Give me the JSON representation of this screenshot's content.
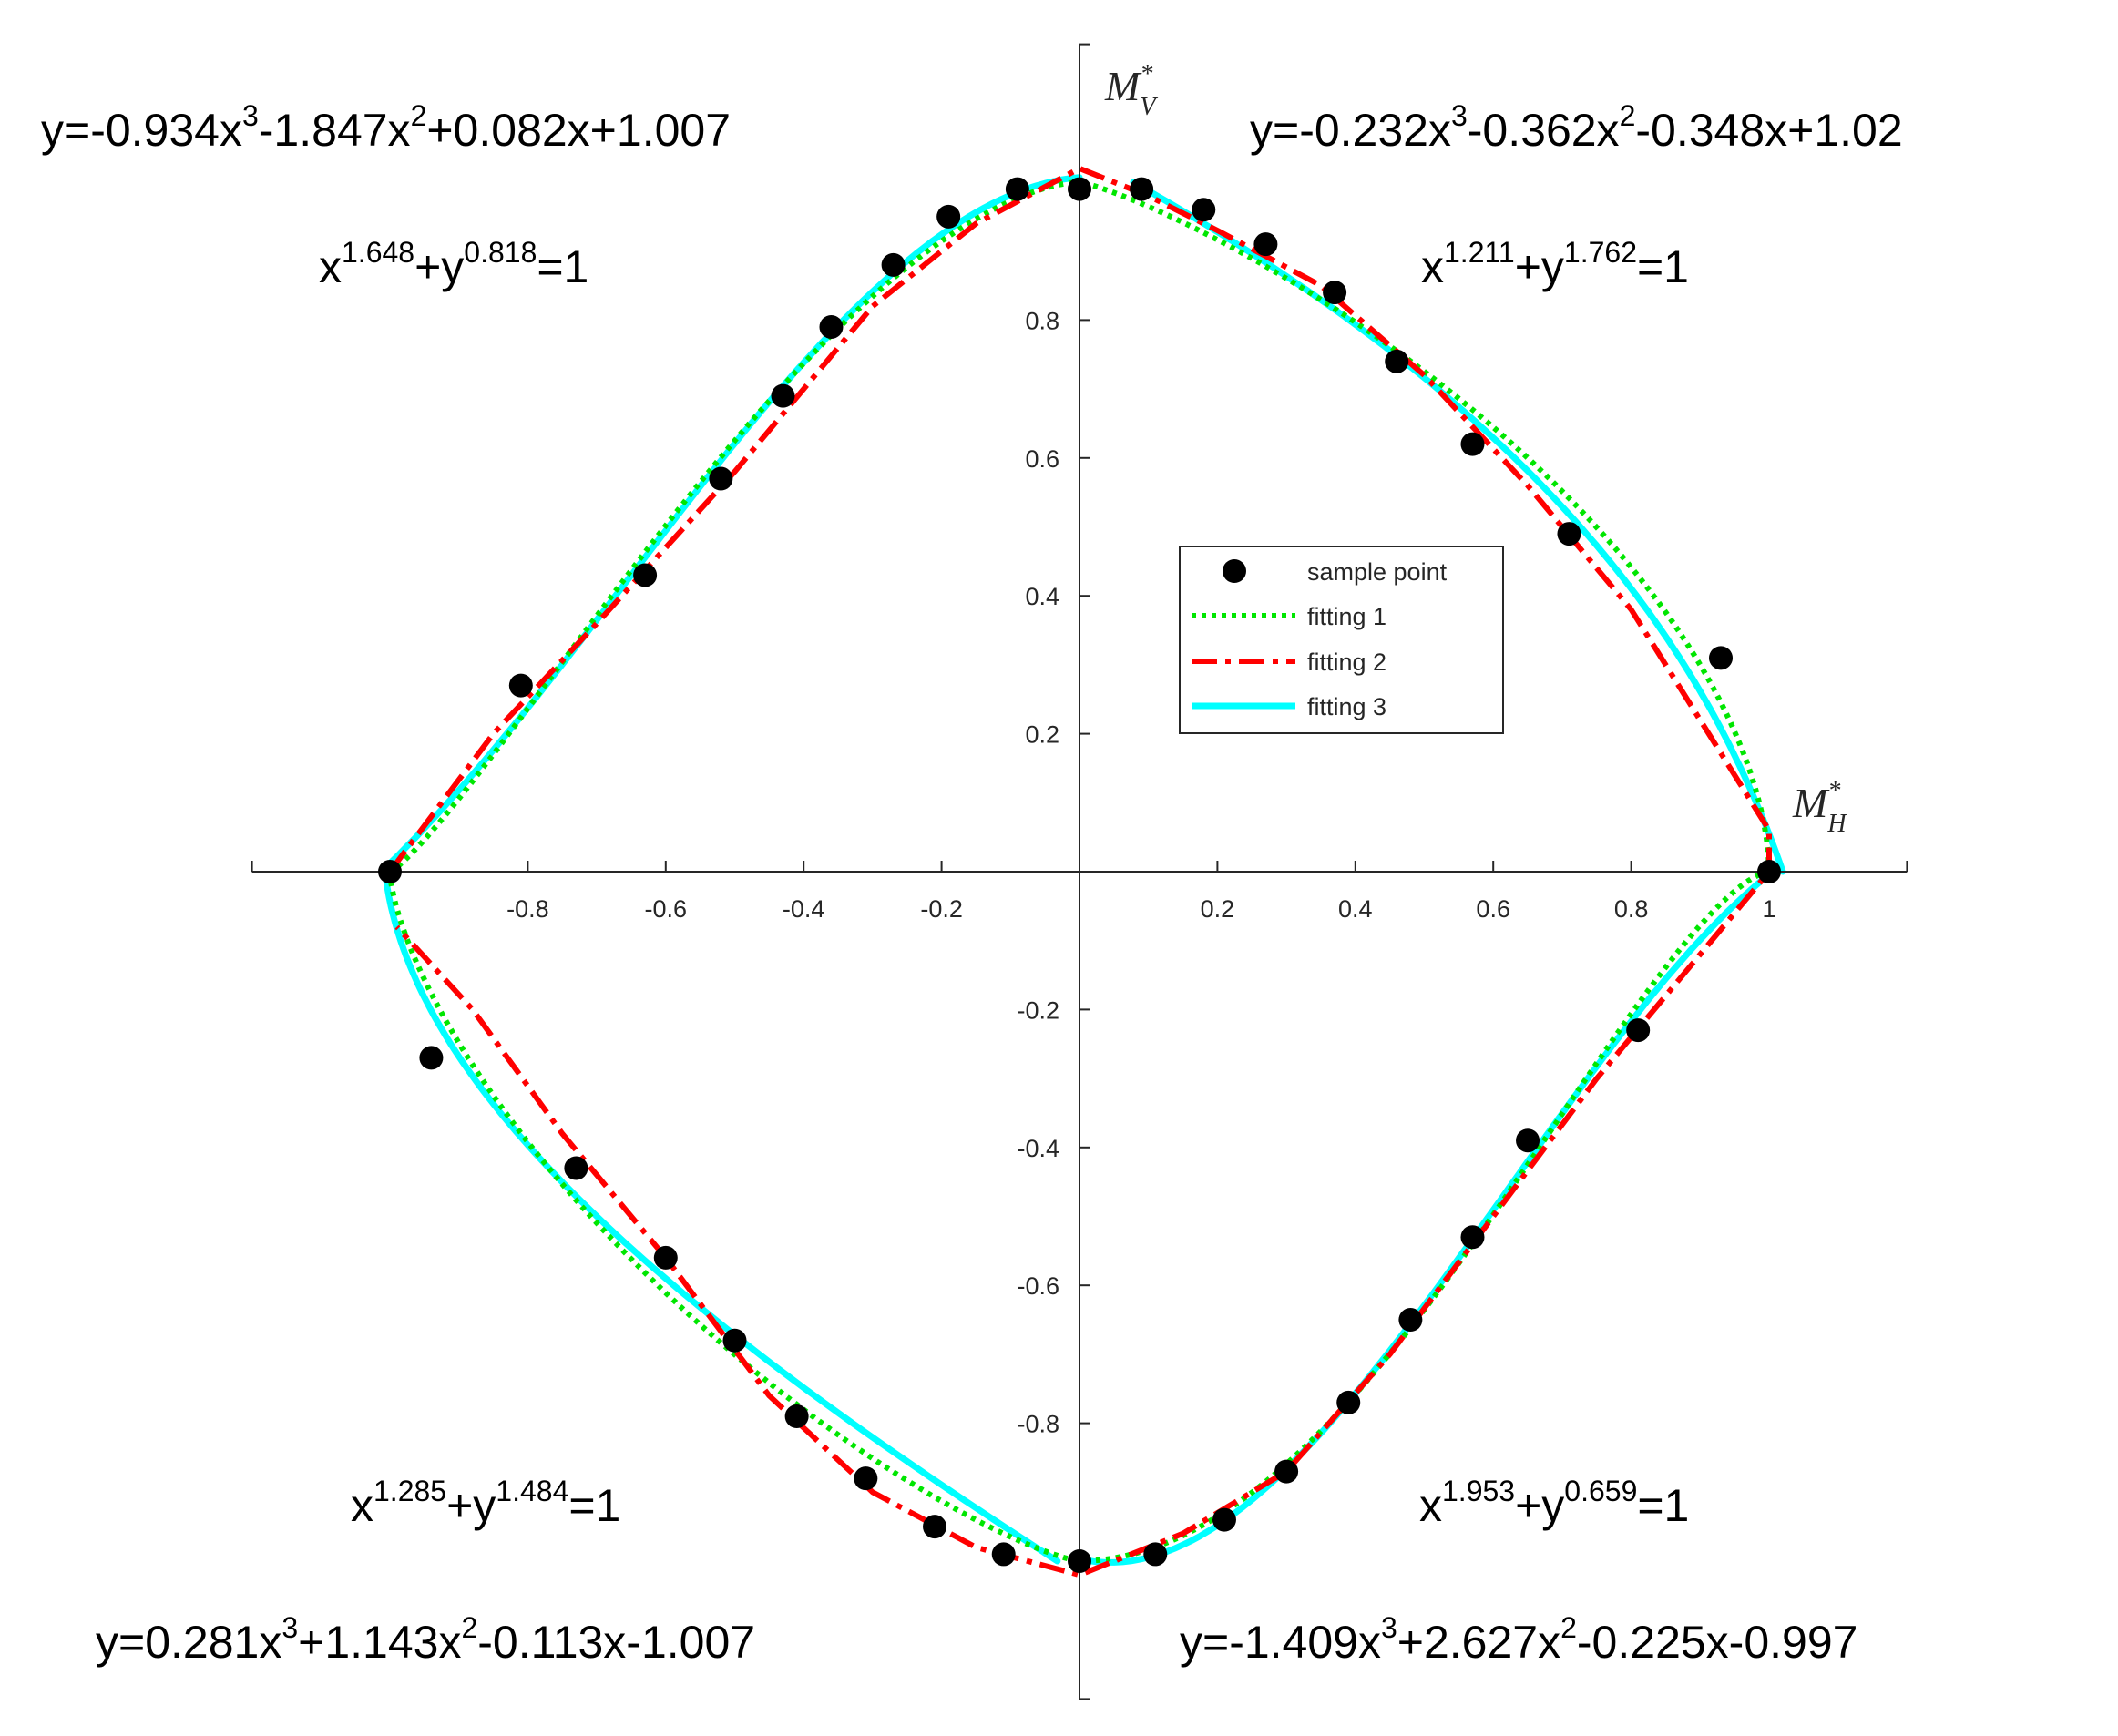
{
  "chart_data": {
    "type": "line",
    "axes": {
      "x": {
        "label": "M",
        "label_sub": "H",
        "label_sup": "*",
        "range": [
          -1.2,
          1.2
        ],
        "ticks": [
          -0.8,
          -0.6,
          -0.4,
          -0.2,
          0.2,
          0.4,
          0.6,
          0.8,
          1
        ],
        "tick_labels": [
          "-0.8",
          "-0.6",
          "-0.4",
          "-0.2",
          "0.2",
          "0.4",
          "0.6",
          "0.8",
          "1"
        ]
      },
      "y": {
        "label": "M",
        "label_sub": "V",
        "label_sup": "*",
        "range": [
          -1.2,
          1.2
        ],
        "ticks": [
          0.8,
          0.6,
          0.4,
          0.2,
          -0.2,
          -0.4,
          -0.6,
          -0.8
        ],
        "tick_labels": [
          "0.8",
          "0.6",
          "0.4",
          "0.2",
          "-0.2",
          "-0.4",
          "-0.6",
          "-0.8"
        ]
      }
    },
    "grid": false,
    "legend": {
      "placement": "center-right",
      "entries": [
        "sample point",
        "fitting 1",
        "fitting 2",
        "fitting 3"
      ]
    },
    "series": [
      {
        "name": "sample point",
        "marker": "circle",
        "color": "#000000",
        "points": [
          [
            -0.09,
            0.99
          ],
          [
            -0.19,
            0.95
          ],
          [
            -0.27,
            0.88
          ],
          [
            -0.36,
            0.79
          ],
          [
            -0.43,
            0.69
          ],
          [
            -0.52,
            0.57
          ],
          [
            -0.63,
            0.43
          ],
          [
            -0.81,
            0.27
          ],
          [
            -1.0,
            0.0
          ],
          [
            0.0,
            0.99
          ],
          [
            0.09,
            0.99
          ],
          [
            0.18,
            0.96
          ],
          [
            0.27,
            0.91
          ],
          [
            0.37,
            0.84
          ],
          [
            0.46,
            0.74
          ],
          [
            0.57,
            0.62
          ],
          [
            0.71,
            0.49
          ],
          [
            0.93,
            0.31
          ],
          [
            1.0,
            0.0
          ],
          [
            -0.94,
            -0.27
          ],
          [
            -0.73,
            -0.43
          ],
          [
            -0.6,
            -0.56
          ],
          [
            -0.5,
            -0.68
          ],
          [
            -0.41,
            -0.79
          ],
          [
            -0.31,
            -0.88
          ],
          [
            -0.21,
            -0.95
          ],
          [
            -0.11,
            -0.99
          ],
          [
            0.0,
            -1.0
          ],
          [
            0.11,
            -0.99
          ],
          [
            0.21,
            -0.94
          ],
          [
            0.3,
            -0.87
          ],
          [
            0.39,
            -0.77
          ],
          [
            0.48,
            -0.65
          ],
          [
            0.57,
            -0.53
          ],
          [
            0.65,
            -0.39
          ],
          [
            0.81,
            -0.23
          ]
        ]
      },
      {
        "name": "fitting 1",
        "style": "dotted",
        "color": "#00e600",
        "quadrant_exponents": [
          {
            "quadrant": "upper-right",
            "a": 1.211,
            "b": 1.762
          },
          {
            "quadrant": "upper-left",
            "a": 1.648,
            "b": 0.818
          },
          {
            "quadrant": "lower-left",
            "a": 1.285,
            "b": 1.484
          },
          {
            "quadrant": "lower-right",
            "a": 1.953,
            "b": 0.659
          }
        ]
      },
      {
        "name": "fitting 2",
        "style": "dash-dot",
        "color": "#ff0000",
        "points": [
          [
            -1.0,
            0.0
          ],
          [
            -0.85,
            0.2
          ],
          [
            -0.7,
            0.36
          ],
          [
            -0.5,
            0.58
          ],
          [
            -0.3,
            0.82
          ],
          [
            -0.15,
            0.94
          ],
          [
            0.0,
            1.02
          ],
          [
            0.1,
            0.98
          ],
          [
            0.2,
            0.93
          ],
          [
            0.35,
            0.85
          ],
          [
            0.5,
            0.72
          ],
          [
            0.65,
            0.56
          ],
          [
            0.8,
            0.38
          ],
          [
            0.9,
            0.22
          ],
          [
            1.0,
            0.06
          ],
          [
            1.0,
            0.0
          ],
          [
            0.9,
            -0.12
          ],
          [
            0.75,
            -0.3
          ],
          [
            0.6,
            -0.5
          ],
          [
            0.45,
            -0.7
          ],
          [
            0.3,
            -0.87
          ],
          [
            0.15,
            -0.96
          ],
          [
            0.0,
            -1.02
          ],
          [
            -0.15,
            -0.98
          ],
          [
            -0.3,
            -0.9
          ],
          [
            -0.45,
            -0.76
          ],
          [
            -0.6,
            -0.56
          ],
          [
            -0.75,
            -0.38
          ],
          [
            -0.88,
            -0.2
          ],
          [
            -0.99,
            -0.08
          ]
        ]
      },
      {
        "name": "fitting 3",
        "style": "solid",
        "color": "#00ffff",
        "polynomials": [
          {
            "quadrant": "upper-left",
            "coefficients": [
              -0.934,
              -1.847,
              0.082,
              1.007
            ]
          },
          {
            "quadrant": "upper-right",
            "coefficients": [
              -0.232,
              -0.362,
              -0.348,
              1.02
            ]
          },
          {
            "quadrant": "lower-left",
            "coefficients": [
              0.281,
              1.143,
              -0.113,
              -1.007
            ]
          },
          {
            "quadrant": "lower-right",
            "coefficients": [
              -1.409,
              2.627,
              -0.225,
              -0.997
            ]
          }
        ]
      }
    ],
    "annotations": {
      "poly_ul": [
        {
          "t": "y=-0.934x"
        },
        {
          "t": "3",
          "sup": true
        },
        {
          "t": "-1.847x"
        },
        {
          "t": "2",
          "sup": true
        },
        {
          "t": "+0.082x+1.007"
        }
      ],
      "poly_ur": [
        {
          "t": "y=-0.232x"
        },
        {
          "t": "3",
          "sup": true
        },
        {
          "t": "-0.362x"
        },
        {
          "t": "2",
          "sup": true
        },
        {
          "t": "-0.348x+1.02"
        }
      ],
      "poly_ll": [
        {
          "t": "y=0.281x"
        },
        {
          "t": "3",
          "sup": true
        },
        {
          "t": "+1.143x"
        },
        {
          "t": "2",
          "sup": true
        },
        {
          "t": "-0.113x-1.007"
        }
      ],
      "poly_lr": [
        {
          "t": "y=-1.409x"
        },
        {
          "t": "3",
          "sup": true
        },
        {
          "t": "+2.627x"
        },
        {
          "t": "2",
          "sup": true
        },
        {
          "t": "-0.225x-0.997"
        }
      ],
      "pow_ul": [
        {
          "t": "x"
        },
        {
          "t": "1.648",
          "sup": true
        },
        {
          "t": "+y"
        },
        {
          "t": "0.818",
          "sup": true
        },
        {
          "t": "=1"
        }
      ],
      "pow_ur": [
        {
          "t": "x"
        },
        {
          "t": "1.211",
          "sup": true
        },
        {
          "t": "+y"
        },
        {
          "t": "1.762",
          "sup": true
        },
        {
          "t": "=1"
        }
      ],
      "pow_ll": [
        {
          "t": "x"
        },
        {
          "t": "1.285",
          "sup": true
        },
        {
          "t": "+y"
        },
        {
          "t": "1.484",
          "sup": true
        },
        {
          "t": "=1"
        }
      ],
      "pow_lr": [
        {
          "t": "x"
        },
        {
          "t": "1.953",
          "sup": true
        },
        {
          "t": "+y"
        },
        {
          "t": "0.659",
          "sup": true
        },
        {
          "t": "=1"
        }
      ]
    }
  }
}
